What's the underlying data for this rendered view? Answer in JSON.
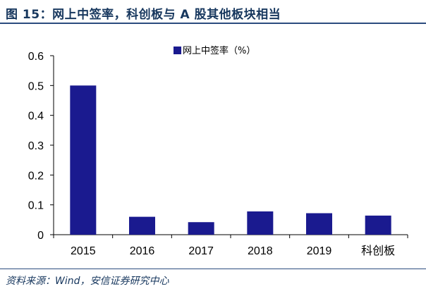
{
  "figure": {
    "title": "图 15：网上中签率，科创板与 A 股其他板块相当",
    "source": "资料来源：Wind，安信证券研究中心"
  },
  "chart_data": {
    "type": "bar",
    "categories": [
      "2015",
      "2016",
      "2017",
      "2018",
      "2019",
      "科创板"
    ],
    "series": [
      {
        "name": "网上中签率（%）",
        "values": [
          0.5,
          0.06,
          0.042,
          0.078,
          0.072,
          0.064
        ]
      }
    ],
    "ylim": [
      0,
      0.6
    ],
    "yticks": [
      "0",
      "0.1",
      "0.2",
      "0.3",
      "0.4",
      "0.5",
      "0.6"
    ],
    "grid": false,
    "legend_position": "top-center",
    "colors": {
      "bar": "#1a1a8f",
      "title": "#17375e",
      "rule": "#2b4c7e"
    }
  }
}
